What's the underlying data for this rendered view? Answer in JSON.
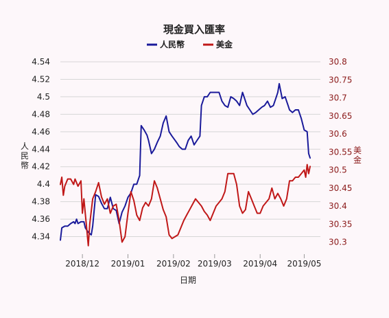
{
  "colors": {
    "left_series": "#1a1a9a",
    "right_series": "#c01818",
    "right_axis_text": "#8b1a1a",
    "grid": "#d6d6d6",
    "background": "#fdf7fa"
  },
  "chart_data": {
    "type": "line",
    "title": "現金買入匯率",
    "xlabel": "日期",
    "ylabel_left": "人民幣",
    "ylabel_right": "美金",
    "legend_position": "top-center",
    "grid": true,
    "x_domain": [
      "2018-11-16",
      "2019-05-12"
    ],
    "x_ticks": [
      {
        "date": "2018-12-01",
        "label": "2018/12"
      },
      {
        "date": "2019-01-01",
        "label": "2019/01"
      },
      {
        "date": "2019-02-01",
        "label": "2019/02"
      },
      {
        "date": "2019-03-01",
        "label": "2019/03"
      },
      {
        "date": "2019-04-01",
        "label": "2019/04"
      },
      {
        "date": "2019-05-01",
        "label": "2019/05"
      }
    ],
    "y_left": {
      "range": [
        4.32,
        4.54
      ],
      "ticks": [
        4.34,
        4.36,
        4.38,
        4.4,
        4.42,
        4.44,
        4.46,
        4.48,
        4.5,
        4.52,
        4.54
      ],
      "tick_labels": [
        "4.34",
        "4.36",
        "4.38",
        "4.4",
        "4.42",
        "4.44",
        "4.46",
        "4.48",
        "4.5",
        "4.52",
        "4.54"
      ]
    },
    "y_right": {
      "range": [
        30.2667,
        30.8
      ],
      "ticks": [
        30.3,
        30.35,
        30.4,
        30.45,
        30.5,
        30.55,
        30.6,
        30.65,
        30.7,
        30.75,
        30.8
      ],
      "tick_labels": [
        "30.3",
        "30.35",
        "30.4",
        "30.45",
        "30.5",
        "30.55",
        "30.6",
        "30.65",
        "30.7",
        "30.75",
        "30.8"
      ]
    },
    "series": [
      {
        "name": "人民幣",
        "axis": "left",
        "points": [
          [
            "2018-11-16",
            4.336
          ],
          [
            "2018-11-17",
            4.35
          ],
          [
            "2018-11-19",
            4.352
          ],
          [
            "2018-11-21",
            4.352
          ],
          [
            "2018-11-23",
            4.355
          ],
          [
            "2018-11-25",
            4.357
          ],
          [
            "2018-11-26",
            4.355
          ],
          [
            "2018-11-27",
            4.36
          ],
          [
            "2018-11-28",
            4.355
          ],
          [
            "2018-11-30",
            4.357
          ],
          [
            "2018-12-02",
            4.357
          ],
          [
            "2018-12-03",
            4.35
          ],
          [
            "2018-12-05",
            4.345
          ],
          [
            "2018-12-07",
            4.342
          ],
          [
            "2018-12-08",
            4.352
          ],
          [
            "2018-12-10",
            4.388
          ],
          [
            "2018-12-12",
            4.386
          ],
          [
            "2018-12-14",
            4.378
          ],
          [
            "2018-12-16",
            4.372
          ],
          [
            "2018-12-18",
            4.372
          ],
          [
            "2018-12-20",
            4.385
          ],
          [
            "2018-12-22",
            4.372
          ],
          [
            "2018-12-24",
            4.37
          ],
          [
            "2018-12-26",
            4.355
          ],
          [
            "2018-12-28",
            4.368
          ],
          [
            "2018-12-30",
            4.375
          ],
          [
            "2019-01-01",
            4.385
          ],
          [
            "2019-01-03",
            4.39
          ],
          [
            "2019-01-05",
            4.4
          ],
          [
            "2019-01-07",
            4.4
          ],
          [
            "2019-01-09",
            4.41
          ],
          [
            "2019-01-10",
            4.467
          ],
          [
            "2019-01-12",
            4.462
          ],
          [
            "2019-01-14",
            4.456
          ],
          [
            "2019-01-15",
            4.45
          ],
          [
            "2019-01-17",
            4.435
          ],
          [
            "2019-01-19",
            4.44
          ],
          [
            "2019-01-21",
            4.448
          ],
          [
            "2019-01-23",
            4.455
          ],
          [
            "2019-01-25",
            4.47
          ],
          [
            "2019-01-27",
            4.478
          ],
          [
            "2019-01-29",
            4.46
          ],
          [
            "2019-01-31",
            4.455
          ],
          [
            "2019-02-03",
            4.448
          ],
          [
            "2019-02-05",
            4.443
          ],
          [
            "2019-02-07",
            4.44
          ],
          [
            "2019-02-09",
            4.44
          ],
          [
            "2019-02-11",
            4.45
          ],
          [
            "2019-02-13",
            4.455
          ],
          [
            "2019-02-15",
            4.445
          ],
          [
            "2019-02-17",
            4.45
          ],
          [
            "2019-02-19",
            4.455
          ],
          [
            "2019-02-20",
            4.49
          ],
          [
            "2019-02-21",
            4.495
          ],
          [
            "2019-02-22",
            4.5
          ],
          [
            "2019-02-24",
            4.5
          ],
          [
            "2019-02-26",
            4.505
          ],
          [
            "2019-02-28",
            4.505
          ],
          [
            "2019-03-02",
            4.505
          ],
          [
            "2019-03-04",
            4.505
          ],
          [
            "2019-03-06",
            4.495
          ],
          [
            "2019-03-08",
            4.49
          ],
          [
            "2019-03-10",
            4.488
          ],
          [
            "2019-03-12",
            4.5
          ],
          [
            "2019-03-14",
            4.498
          ],
          [
            "2019-03-16",
            4.495
          ],
          [
            "2019-03-18",
            4.49
          ],
          [
            "2019-03-20",
            4.505
          ],
          [
            "2019-03-21",
            4.5
          ],
          [
            "2019-03-23",
            4.49
          ],
          [
            "2019-03-25",
            4.485
          ],
          [
            "2019-03-27",
            4.48
          ],
          [
            "2019-03-29",
            4.482
          ],
          [
            "2019-03-31",
            4.485
          ],
          [
            "2019-04-02",
            4.488
          ],
          [
            "2019-04-04",
            4.49
          ],
          [
            "2019-04-06",
            4.495
          ],
          [
            "2019-04-08",
            4.488
          ],
          [
            "2019-04-10",
            4.49
          ],
          [
            "2019-04-12",
            4.5
          ],
          [
            "2019-04-13",
            4.505
          ],
          [
            "2019-04-14",
            4.515
          ],
          [
            "2019-04-16",
            4.498
          ],
          [
            "2019-04-18",
            4.5
          ],
          [
            "2019-04-20",
            4.49
          ],
          [
            "2019-04-21",
            4.485
          ],
          [
            "2019-04-23",
            4.482
          ],
          [
            "2019-04-25",
            4.485
          ],
          [
            "2019-04-27",
            4.485
          ],
          [
            "2019-04-29",
            4.475
          ],
          [
            "2019-05-01",
            4.462
          ],
          [
            "2019-05-03",
            4.46
          ],
          [
            "2019-05-04",
            4.435
          ],
          [
            "2019-05-05",
            4.43
          ]
        ]
      },
      {
        "name": "美金",
        "axis": "right",
        "points": [
          [
            "2018-11-16",
            30.46
          ],
          [
            "2018-11-17",
            30.48
          ],
          [
            "2018-11-18",
            30.43
          ],
          [
            "2018-11-19",
            30.455
          ],
          [
            "2018-11-21",
            30.475
          ],
          [
            "2018-11-23",
            30.475
          ],
          [
            "2018-11-25",
            30.46
          ],
          [
            "2018-11-26",
            30.475
          ],
          [
            "2018-11-28",
            30.455
          ],
          [
            "2018-11-30",
            30.47
          ],
          [
            "2018-12-01",
            30.38
          ],
          [
            "2018-12-02",
            30.42
          ],
          [
            "2018-12-04",
            30.335
          ],
          [
            "2018-12-05",
            30.29
          ],
          [
            "2018-12-06",
            30.35
          ],
          [
            "2018-12-08",
            30.42
          ],
          [
            "2018-12-10",
            30.44
          ],
          [
            "2018-12-12",
            30.465
          ],
          [
            "2018-12-14",
            30.425
          ],
          [
            "2018-12-16",
            30.405
          ],
          [
            "2018-12-18",
            30.42
          ],
          [
            "2018-12-20",
            30.38
          ],
          [
            "2018-12-22",
            30.4
          ],
          [
            "2018-12-24",
            30.405
          ],
          [
            "2018-12-26",
            30.36
          ],
          [
            "2018-12-28",
            30.3
          ],
          [
            "2018-12-30",
            30.315
          ],
          [
            "2019-01-01",
            30.38
          ],
          [
            "2019-01-03",
            30.44
          ],
          [
            "2019-01-05",
            30.415
          ],
          [
            "2019-01-07",
            30.375
          ],
          [
            "2019-01-09",
            30.36
          ],
          [
            "2019-01-11",
            30.395
          ],
          [
            "2019-01-13",
            30.41
          ],
          [
            "2019-01-15",
            30.4
          ],
          [
            "2019-01-17",
            30.42
          ],
          [
            "2019-01-19",
            30.47
          ],
          [
            "2019-01-21",
            30.45
          ],
          [
            "2019-01-23",
            30.42
          ],
          [
            "2019-01-25",
            30.39
          ],
          [
            "2019-01-27",
            30.37
          ],
          [
            "2019-01-29",
            30.32
          ],
          [
            "2019-01-31",
            30.31
          ],
          [
            "2019-02-02",
            30.315
          ],
          [
            "2019-02-04",
            30.32
          ],
          [
            "2019-02-06",
            30.34
          ],
          [
            "2019-02-08",
            30.36
          ],
          [
            "2019-02-10",
            30.375
          ],
          [
            "2019-02-12",
            30.39
          ],
          [
            "2019-02-14",
            30.405
          ],
          [
            "2019-02-16",
            30.42
          ],
          [
            "2019-02-18",
            30.41
          ],
          [
            "2019-02-20",
            30.4
          ],
          [
            "2019-02-22",
            30.385
          ],
          [
            "2019-02-24",
            30.375
          ],
          [
            "2019-02-26",
            30.36
          ],
          [
            "2019-02-28",
            30.38
          ],
          [
            "2019-03-02",
            30.4
          ],
          [
            "2019-03-04",
            30.41
          ],
          [
            "2019-03-06",
            30.42
          ],
          [
            "2019-03-08",
            30.44
          ],
          [
            "2019-03-10",
            30.49
          ],
          [
            "2019-03-12",
            30.49
          ],
          [
            "2019-03-14",
            30.49
          ],
          [
            "2019-03-16",
            30.46
          ],
          [
            "2019-03-18",
            30.4
          ],
          [
            "2019-03-20",
            30.38
          ],
          [
            "2019-03-22",
            30.39
          ],
          [
            "2019-03-24",
            30.44
          ],
          [
            "2019-03-26",
            30.42
          ],
          [
            "2019-03-28",
            30.4
          ],
          [
            "2019-03-30",
            30.38
          ],
          [
            "2019-04-01",
            30.38
          ],
          [
            "2019-04-03",
            30.4
          ],
          [
            "2019-04-05",
            30.41
          ],
          [
            "2019-04-07",
            30.42
          ],
          [
            "2019-04-09",
            30.45
          ],
          [
            "2019-04-11",
            30.42
          ],
          [
            "2019-04-13",
            30.435
          ],
          [
            "2019-04-15",
            30.42
          ],
          [
            "2019-04-17",
            30.4
          ],
          [
            "2019-04-19",
            30.42
          ],
          [
            "2019-04-21",
            30.47
          ],
          [
            "2019-04-23",
            30.47
          ],
          [
            "2019-04-25",
            30.48
          ],
          [
            "2019-04-27",
            30.48
          ],
          [
            "2019-04-29",
            30.49
          ],
          [
            "2019-05-01",
            30.5
          ],
          [
            "2019-05-02",
            30.48
          ],
          [
            "2019-05-03",
            30.515
          ],
          [
            "2019-05-04",
            30.49
          ],
          [
            "2019-05-05",
            30.51
          ]
        ]
      }
    ]
  }
}
